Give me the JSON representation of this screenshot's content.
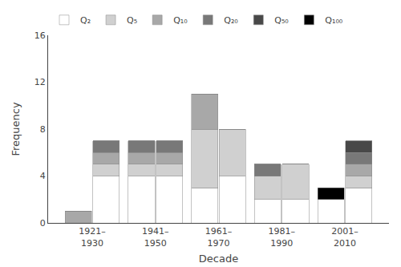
{
  "chart_data": {
    "type": "bar",
    "stacked": true,
    "xlabel": "Decade",
    "ylabel": "Frequency",
    "categories": [
      "1921–\n1930",
      "1941–\n1950",
      "1961–\n1970",
      "1981–\n1990",
      "2001–\n2010"
    ],
    "series": [
      {
        "name": "Q₂",
        "color": "#ffffff",
        "values": [
          [
            0,
            4
          ],
          [
            4,
            4
          ],
          [
            3,
            4
          ],
          [
            2,
            2
          ],
          [
            2,
            3
          ]
        ]
      },
      {
        "name": "Q₅",
        "color": "#d0d0d0",
        "values": [
          [
            0,
            1
          ],
          [
            1,
            1
          ],
          [
            5,
            4
          ],
          [
            2,
            3
          ],
          [
            0,
            1
          ]
        ]
      },
      {
        "name": "Q₁₀",
        "color": "#a8a8a8",
        "values": [
          [
            1,
            1
          ],
          [
            1,
            1
          ],
          [
            3,
            0
          ],
          [
            0,
            0
          ],
          [
            0,
            1
          ]
        ]
      },
      {
        "name": "Q₂₀",
        "color": "#787878",
        "values": [
          [
            0,
            1
          ],
          [
            1,
            1
          ],
          [
            0,
            0
          ],
          [
            1,
            0
          ],
          [
            0,
            1
          ]
        ]
      },
      {
        "name": "Q₅₀",
        "color": "#484848",
        "values": [
          [
            0,
            0
          ],
          [
            0,
            0
          ],
          [
            0,
            0
          ],
          [
            0,
            0
          ],
          [
            0,
            1
          ]
        ]
      },
      {
        "name": "Q₁₀₀",
        "color": "#000000",
        "values": [
          [
            0,
            0
          ],
          [
            0,
            0
          ],
          [
            0,
            0
          ],
          [
            0,
            0
          ],
          [
            1,
            0
          ]
        ]
      }
    ],
    "ylim": [
      0,
      16
    ],
    "yticks": [
      0,
      4,
      8,
      12,
      16
    ],
    "grid": false,
    "legend": "upper left"
  }
}
